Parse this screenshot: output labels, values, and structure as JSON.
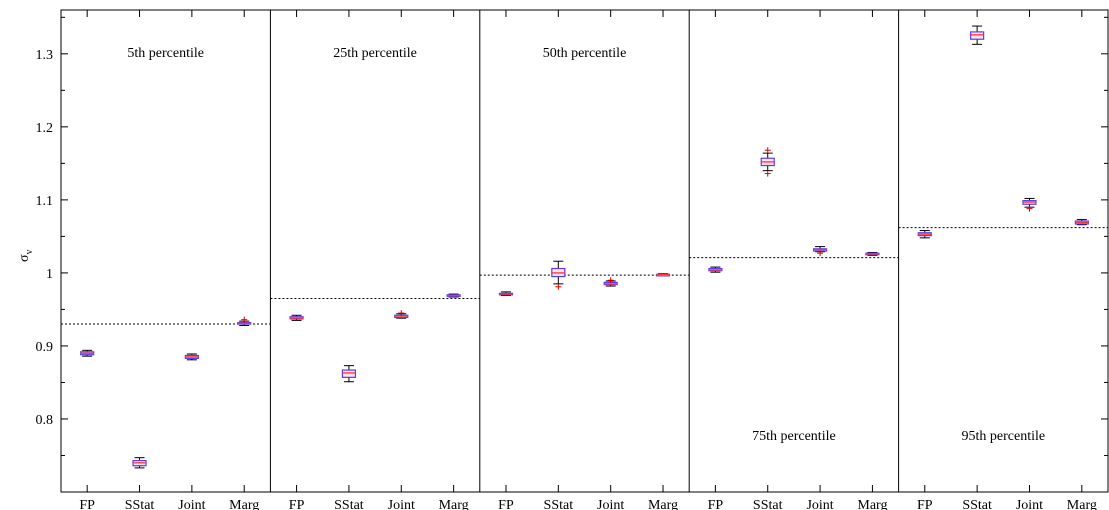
{
  "chart_data": {
    "type": "box",
    "ylabel": "σ",
    "ylabel_sub": "v",
    "ylim": [
      0.7,
      1.36
    ],
    "yticks": [
      0.8,
      0.9,
      1.0,
      1.1,
      1.2,
      1.3
    ],
    "ytick_labels": [
      "0.8",
      "0.9",
      "1",
      "1.1",
      "1.2",
      "1.3"
    ],
    "categories": [
      "FP",
      "SStat",
      "Joint",
      "Marg"
    ],
    "colors": {
      "box_edge": "#5a3cf0",
      "median": "#ff3333",
      "box_fill": "#ffe3ec",
      "whisker": "#000000",
      "outlier": "#dd0000",
      "reference_line": "#000000"
    },
    "panels": [
      {
        "label": "5th percentile",
        "label_position": "top",
        "reference": 0.93,
        "boxes": [
          {
            "category": "FP",
            "whisker_low": 0.886,
            "q1": 0.888,
            "median": 0.89,
            "q3": 0.892,
            "whisker_high": 0.894,
            "outliers": []
          },
          {
            "category": "SStat",
            "whisker_low": 0.733,
            "q1": 0.736,
            "median": 0.74,
            "q3": 0.743,
            "whisker_high": 0.747,
            "outliers": []
          },
          {
            "category": "Joint",
            "whisker_low": 0.881,
            "q1": 0.883,
            "median": 0.885,
            "q3": 0.887,
            "whisker_high": 0.889,
            "outliers": []
          },
          {
            "category": "Marg",
            "whisker_low": 0.928,
            "q1": 0.93,
            "median": 0.931,
            "q3": 0.932,
            "whisker_high": 0.934,
            "outliers": [
              0.936
            ]
          }
        ]
      },
      {
        "label": "25th percentile",
        "label_position": "top",
        "reference": 0.965,
        "boxes": [
          {
            "category": "FP",
            "whisker_low": 0.935,
            "q1": 0.937,
            "median": 0.938,
            "q3": 0.94,
            "whisker_high": 0.942,
            "outliers": []
          },
          {
            "category": "SStat",
            "whisker_low": 0.851,
            "q1": 0.857,
            "median": 0.863,
            "q3": 0.867,
            "whisker_high": 0.873,
            "outliers": []
          },
          {
            "category": "Joint",
            "whisker_low": 0.938,
            "q1": 0.939,
            "median": 0.941,
            "q3": 0.942,
            "whisker_high": 0.944,
            "outliers": [
              0.945
            ]
          },
          {
            "category": "Marg",
            "whisker_low": 0.967,
            "q1": 0.968,
            "median": 0.969,
            "q3": 0.97,
            "whisker_high": 0.971,
            "outliers": []
          }
        ]
      },
      {
        "label": "50th percentile",
        "label_position": "top",
        "reference": 0.997,
        "boxes": [
          {
            "category": "FP",
            "whisker_low": 0.969,
            "q1": 0.97,
            "median": 0.971,
            "q3": 0.972,
            "whisker_high": 0.974,
            "outliers": []
          },
          {
            "category": "SStat",
            "whisker_low": 0.985,
            "q1": 0.995,
            "median": 1.0,
            "q3": 1.006,
            "whisker_high": 1.016,
            "outliers": [
              0.981
            ]
          },
          {
            "category": "Joint",
            "whisker_low": 0.982,
            "q1": 0.984,
            "median": 0.985,
            "q3": 0.987,
            "whisker_high": 0.989,
            "outliers": [
              0.99
            ]
          },
          {
            "category": "Marg",
            "whisker_low": 0.996,
            "q1": 0.997,
            "median": 0.998,
            "q3": 0.998,
            "whisker_high": 0.999,
            "outliers": []
          }
        ]
      },
      {
        "label": "75th percentile",
        "label_position": "bottom",
        "reference": 1.021,
        "boxes": [
          {
            "category": "FP",
            "whisker_low": 1.001,
            "q1": 1.003,
            "median": 1.004,
            "q3": 1.006,
            "whisker_high": 1.008,
            "outliers": []
          },
          {
            "category": "SStat",
            "whisker_low": 1.14,
            "q1": 1.147,
            "median": 1.152,
            "q3": 1.157,
            "whisker_high": 1.164,
            "outliers": [
              1.136,
              1.168
            ]
          },
          {
            "category": "Joint",
            "whisker_low": 1.029,
            "q1": 1.03,
            "median": 1.032,
            "q3": 1.033,
            "whisker_high": 1.036,
            "outliers": [
              1.027
            ]
          },
          {
            "category": "Marg",
            "whisker_low": 1.024,
            "q1": 1.025,
            "median": 1.026,
            "q3": 1.027,
            "whisker_high": 1.028,
            "outliers": []
          }
        ]
      },
      {
        "label": "95th percentile",
        "label_position": "bottom",
        "reference": 1.062,
        "boxes": [
          {
            "category": "FP",
            "whisker_low": 1.048,
            "q1": 1.051,
            "median": 1.053,
            "q3": 1.055,
            "whisker_high": 1.058,
            "outliers": []
          },
          {
            "category": "SStat",
            "whisker_low": 1.313,
            "q1": 1.32,
            "median": 1.326,
            "q3": 1.33,
            "whisker_high": 1.338,
            "outliers": []
          },
          {
            "category": "Joint",
            "whisker_low": 1.09,
            "q1": 1.094,
            "median": 1.097,
            "q3": 1.099,
            "whisker_high": 1.102,
            "outliers": [
              1.088
            ]
          },
          {
            "category": "Marg",
            "whisker_low": 1.066,
            "q1": 1.067,
            "median": 1.069,
            "q3": 1.071,
            "whisker_high": 1.073,
            "outliers": []
          }
        ]
      }
    ]
  }
}
